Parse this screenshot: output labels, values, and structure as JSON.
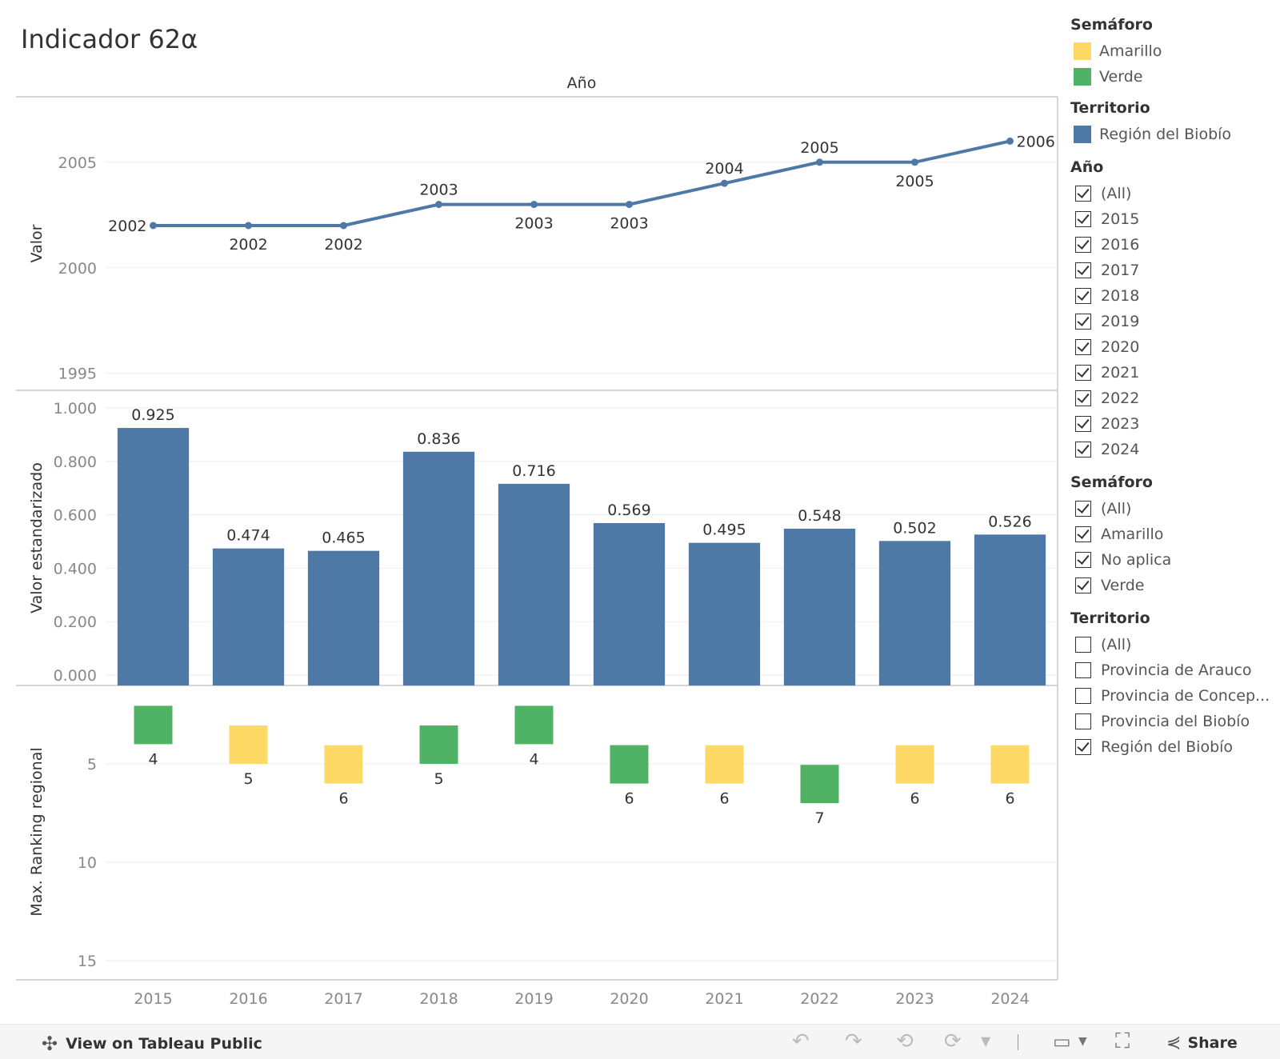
{
  "title": "Indicador 62α",
  "axis_header": "Año",
  "legends": {
    "semaforo": {
      "title": "Semáforo",
      "items": [
        {
          "label": "Amarillo",
          "color": "#ffd966"
        },
        {
          "label": "Verde",
          "color": "#4fb264"
        }
      ]
    },
    "territorio": {
      "title": "Territorio",
      "items": [
        {
          "label": "Región del Biobío",
          "color": "#4e79a7"
        }
      ]
    }
  },
  "filters": [
    {
      "title": "Año",
      "items": [
        {
          "label": "(All)",
          "checked": true
        },
        {
          "label": "2015",
          "checked": true
        },
        {
          "label": "2016",
          "checked": true
        },
        {
          "label": "2017",
          "checked": true
        },
        {
          "label": "2018",
          "checked": true
        },
        {
          "label": "2019",
          "checked": true
        },
        {
          "label": "2020",
          "checked": true
        },
        {
          "label": "2021",
          "checked": true
        },
        {
          "label": "2022",
          "checked": true
        },
        {
          "label": "2023",
          "checked": true
        },
        {
          "label": "2024",
          "checked": true
        }
      ]
    },
    {
      "title": "Semáforo",
      "items": [
        {
          "label": "(All)",
          "checked": true
        },
        {
          "label": "Amarillo",
          "checked": true
        },
        {
          "label": "No aplica",
          "checked": true
        },
        {
          "label": "Verde",
          "checked": true
        }
      ]
    },
    {
      "title": "Territorio",
      "items": [
        {
          "label": "(All)",
          "checked": false
        },
        {
          "label": "Provincia de Arauco",
          "checked": false
        },
        {
          "label": "Provincia de Concep...",
          "checked": false
        },
        {
          "label": "Provincia del Biobío",
          "checked": false
        },
        {
          "label": "Región del Biobío",
          "checked": true
        }
      ]
    }
  ],
  "chart_data": [
    {
      "type": "line",
      "ylabel": "Valor",
      "x": [
        "2015",
        "2016",
        "2017",
        "2018",
        "2019",
        "2020",
        "2021",
        "2022",
        "2023",
        "2024"
      ],
      "values": [
        2002,
        2002,
        2002,
        2003,
        2003,
        2003,
        2004,
        2005,
        2005,
        2006
      ],
      "labels": [
        "2002",
        "2002",
        "2002",
        "2003",
        "2003",
        "2003",
        "2004",
        "2005",
        "2005",
        "2006"
      ],
      "yticks": [
        "2005",
        "2000",
        "1995"
      ],
      "ylim": [
        1994.8,
        2007
      ],
      "color": "#4e79a7"
    },
    {
      "type": "bar",
      "ylabel": "Valor estandarizado",
      "categories": [
        "2015",
        "2016",
        "2017",
        "2018",
        "2019",
        "2020",
        "2021",
        "2022",
        "2023",
        "2024"
      ],
      "values": [
        0.925,
        0.474,
        0.465,
        0.836,
        0.716,
        0.569,
        0.495,
        0.548,
        0.502,
        0.526
      ],
      "labels": [
        "0.925",
        "0.474",
        "0.465",
        "0.836",
        "0.716",
        "0.569",
        "0.495",
        "0.548",
        "0.502",
        "0.526"
      ],
      "yticks": [
        "1.000",
        "0.800",
        "0.600",
        "0.400",
        "0.200",
        "0.000"
      ],
      "ylim": [
        0,
        1.0
      ],
      "color": "#4e79a7"
    },
    {
      "type": "scatter",
      "ylabel": "Max. Ranking regional",
      "categories": [
        "2015",
        "2016",
        "2017",
        "2018",
        "2019",
        "2020",
        "2021",
        "2022",
        "2023",
        "2024"
      ],
      "values": [
        4,
        5,
        6,
        5,
        4,
        6,
        6,
        7,
        6,
        6
      ],
      "labels": [
        "4",
        "5",
        "6",
        "5",
        "4",
        "6",
        "6",
        "7",
        "6",
        "6"
      ],
      "semaforo": [
        "Verde",
        "Amarillo",
        "Amarillo",
        "Verde",
        "Verde",
        "Verde",
        "Amarillo",
        "Verde",
        "Amarillo",
        "Amarillo"
      ],
      "yticks": [
        "5",
        "10",
        "15"
      ],
      "ylim": [
        15,
        0
      ],
      "y_reversed": true
    }
  ],
  "x_tick_labels": [
    "2015",
    "2016",
    "2017",
    "2018",
    "2019",
    "2020",
    "2021",
    "2022",
    "2023",
    "2024"
  ],
  "footer": {
    "view_label": "View on Tableau Public",
    "share_label": "Share"
  }
}
